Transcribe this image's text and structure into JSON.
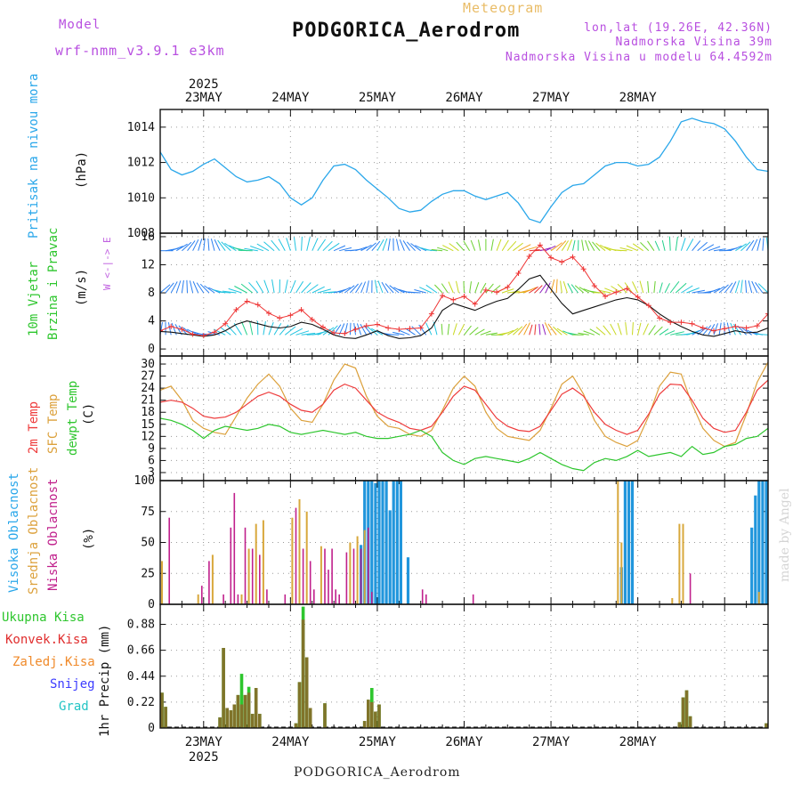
{
  "header": {
    "model_label": "Model",
    "model_name": "wrf-nmm_v3.9.1 e3km",
    "meteogram_label": "Meteogram",
    "station_title": "PODGORICA_Aerodrom",
    "coords": "lon,lat (19.26E, 42.36N)",
    "elevation": "Nadmorska Visina 39m",
    "model_elevation": "Nadmorska Visina u modelu 64.4592m"
  },
  "footer": {
    "station": "PODGORICA_Aerodrom"
  },
  "watermark": "made by Angel",
  "colors": {
    "pressure": "#2aa7ea",
    "wind_speed": "#111111",
    "gust": "#ee3333",
    "temp2m": "#ee3b3b",
    "sfc_temp": "#dca13c",
    "dewpoint": "#2ec62e",
    "high_cloud": "#2196dc",
    "mid_cloud": "#d8a83c",
    "low_cloud": "#c0208c",
    "total_precip": "#2ec62e",
    "conv_precip": "#e02d2d",
    "frozen_precip": "#f08a2a",
    "snow": "#3c3cff",
    "graupel": "#22c4c4"
  },
  "chart_data": [
    {
      "type": "line",
      "panel": "pressure",
      "ylabel_left": "Pritisak na nivou mora",
      "ylabel_unit": "(hPa)",
      "yticks": [
        1008,
        1010,
        1012,
        1014
      ],
      "ylim": [
        1008,
        1015
      ],
      "x_ticks": [
        "23MAY",
        "24MAY",
        "25MAY",
        "26MAY",
        "27MAY",
        "28MAY"
      ],
      "top_year": "2025",
      "start_hour": 12,
      "series": [
        {
          "name": "MSLP",
          "step_h": 3,
          "values": [
            1012.6,
            1011.6,
            1011.3,
            1011.5,
            1011.9,
            1012.2,
            1011.7,
            1011.2,
            1010.9,
            1011.0,
            1011.2,
            1010.8,
            1010.0,
            1009.6,
            1010.0,
            1011.0,
            1011.8,
            1011.9,
            1011.6,
            1011.0,
            1010.5,
            1010.0,
            1009.4,
            1009.2,
            1009.3,
            1009.8,
            1010.2,
            1010.4,
            1010.4,
            1010.1,
            1009.9,
            1010.1,
            1010.3,
            1009.7,
            1008.8,
            1008.6,
            1009.5,
            1010.3,
            1010.7,
            1010.8,
            1011.3,
            1011.8,
            1012.0,
            1012.0,
            1011.8,
            1011.9,
            1012.3,
            1013.2,
            1014.3,
            1014.5,
            1014.3,
            1014.2,
            1013.9,
            1013.2,
            1012.3,
            1011.6,
            1011.5,
            1012.2,
            1012.9,
            1013.0,
            1012.6,
            1012.4,
            1012.8,
            1012.8,
            1012.6,
            1012.5
          ]
        }
      ]
    },
    {
      "type": "line",
      "panel": "wind",
      "ylabel_left": [
        "10m Vjetar",
        "Brzina i Pravac"
      ],
      "ylabel_unit": "(m/s)",
      "compass": "W <-|-> E",
      "yticks": [
        0,
        4,
        8,
        12,
        16
      ],
      "ylim": [
        -1,
        16.5
      ],
      "series": [
        {
          "name": "speed",
          "step_h": 3,
          "values": [
            2.5,
            2.4,
            2.2,
            2.0,
            1.8,
            2.0,
            2.6,
            3.5,
            4.0,
            3.6,
            3.2,
            3.0,
            3.2,
            3.8,
            3.5,
            2.8,
            2.0,
            1.6,
            1.5,
            2.0,
            2.6,
            1.9,
            1.5,
            1.6,
            1.9,
            3.0,
            5.5,
            6.5,
            6.0,
            5.5,
            6.2,
            6.8,
            7.2,
            8.5,
            10.0,
            10.5,
            8.5,
            6.5,
            5.0,
            5.5,
            6.0,
            6.5,
            7.0,
            7.3,
            7.0,
            6.2,
            5.0,
            4.0,
            3.2,
            2.5,
            2.0,
            1.8,
            2.2,
            2.6,
            2.3,
            2.4,
            3.0,
            4.0,
            4.8,
            4.5,
            4.0,
            3.5,
            5.0,
            6.2,
            6.8,
            6.5
          ]
        },
        {
          "name": "gust",
          "step_h": 3,
          "values": [
            2.6,
            3.2,
            2.8,
            2.1,
            1.9,
            2.4,
            3.6,
            5.6,
            6.8,
            6.3,
            5.1,
            4.4,
            4.8,
            5.6,
            4.2,
            3.1,
            2.3,
            2.2,
            2.8,
            3.3,
            3.5,
            3.0,
            2.8,
            2.9,
            3.0,
            5.0,
            7.6,
            7.0,
            7.5,
            6.4,
            8.4,
            8.1,
            8.8,
            10.8,
            13.2,
            14.8,
            13.0,
            12.4,
            13.1,
            11.4,
            9.0,
            7.5,
            8.1,
            8.6,
            7.4,
            6.2,
            4.4,
            3.8,
            3.8,
            3.6,
            3.0,
            2.6,
            2.9,
            3.2,
            3.0,
            3.3,
            5.0,
            5.6,
            6.4,
            5.8,
            5.1,
            4.8,
            10.5,
            13.8,
            12.9,
            8.4
          ]
        },
        {
          "name": "barb_rows_kt",
          "values": [
            14,
            8,
            2
          ]
        }
      ]
    },
    {
      "type": "line",
      "panel": "temperature",
      "ylabel_left": [
        "2m Temp",
        "SFC Temp",
        "dewpt Temp"
      ],
      "ylabel_unit": "(C)",
      "yticks": [
        3,
        6,
        9,
        12,
        15,
        18,
        21,
        24,
        27,
        30
      ],
      "ylim": [
        1,
        32
      ],
      "series": [
        {
          "name": "2m Temp",
          "step_h": 3,
          "values": [
            20.5,
            21.0,
            20.5,
            19.0,
            17.0,
            16.5,
            16.8,
            18.0,
            20.0,
            22.0,
            23.0,
            22.0,
            20.0,
            18.5,
            18.0,
            20.0,
            23.5,
            25.0,
            24.0,
            21.0,
            18.0,
            16.5,
            15.5,
            14.0,
            13.5,
            14.5,
            18.0,
            22.0,
            24.5,
            23.5,
            20.0,
            16.5,
            14.5,
            13.5,
            13.2,
            14.5,
            18.5,
            22.5,
            24.0,
            22.0,
            18.0,
            15.0,
            13.5,
            12.5,
            13.5,
            17.5,
            22.5,
            25.0,
            24.8,
            21.0,
            16.5,
            14.0,
            13.0,
            13.5,
            18.0,
            23.5,
            26.0,
            25.0,
            21.0,
            17.5,
            16.0,
            16.5,
            20.0,
            24.0,
            25.8,
            25.5
          ]
        },
        {
          "name": "SFC Temp",
          "step_h": 3,
          "values": [
            23.5,
            24.5,
            21.0,
            16.0,
            14.0,
            13.0,
            12.5,
            17.0,
            21.5,
            25.0,
            27.5,
            24.5,
            19.0,
            16.0,
            15.5,
            20.0,
            26.0,
            30.0,
            29.0,
            22.0,
            17.0,
            14.5,
            14.0,
            12.5,
            12.0,
            13.5,
            18.5,
            24.0,
            27.0,
            24.5,
            18.0,
            14.0,
            12.0,
            11.5,
            11.0,
            13.5,
            19.0,
            25.0,
            27.0,
            22.5,
            16.0,
            12.0,
            10.5,
            9.5,
            11.0,
            17.0,
            24.5,
            28.0,
            27.5,
            20.0,
            14.0,
            11.0,
            9.5,
            10.5,
            17.5,
            25.5,
            30.5,
            28.0,
            21.5,
            16.5,
            15.0,
            16.0,
            21.0,
            26.5,
            28.5,
            27.5
          ]
        },
        {
          "name": "dewpt Temp",
          "step_h": 3,
          "values": [
            16.5,
            16.0,
            15.0,
            13.5,
            11.5,
            13.5,
            14.5,
            14.0,
            13.5,
            14.0,
            15.0,
            14.5,
            13.0,
            12.5,
            13.0,
            13.5,
            13.0,
            12.5,
            13.0,
            12.0,
            11.5,
            11.5,
            12.0,
            12.5,
            13.5,
            12.0,
            8.0,
            6.0,
            5.0,
            6.5,
            7.0,
            6.5,
            6.0,
            5.5,
            6.5,
            8.0,
            6.5,
            5.0,
            4.0,
            3.5,
            5.5,
            6.5,
            6.0,
            7.0,
            8.5,
            7.0,
            7.5,
            8.0,
            7.0,
            9.5,
            7.5,
            8.0,
            9.5,
            10.0,
            11.5,
            12.0,
            14.0,
            12.0,
            11.0,
            10.5,
            9.5,
            9.0,
            10.5,
            11.5,
            12.0,
            11.0
          ]
        }
      ]
    },
    {
      "type": "bar",
      "panel": "cloud",
      "ylabel_left": [
        "Visoka Oblacnost",
        "Srednja Oblacnost",
        "Niska Oblacnost"
      ],
      "ylabel_unit": "(%)",
      "yticks": [
        0,
        25,
        50,
        75,
        100
      ],
      "ylim": [
        0,
        100
      ],
      "step_h": 1,
      "series": [
        {
          "name": "Visoka Oblacnost",
          "bars": [
            [
              55,
              48
            ],
            [
              56,
              100
            ],
            [
              57,
              100
            ],
            [
              58,
              100
            ],
            [
              59,
              98
            ],
            [
              60,
              100
            ],
            [
              61,
              100
            ],
            [
              62,
              100
            ],
            [
              63,
              76
            ],
            [
              64,
              100
            ],
            [
              65,
              100
            ],
            [
              66,
              100
            ],
            [
              68,
              38
            ],
            [
              127,
              30
            ],
            [
              128,
              100
            ],
            [
              129,
              100
            ],
            [
              130,
              100
            ],
            [
              163,
              62
            ],
            [
              164,
              88
            ],
            [
              165,
              100
            ],
            [
              166,
              100
            ],
            [
              167,
              100
            ]
          ]
        },
        {
          "name": "Srednja Oblacnost",
          "bars": [
            [
              0,
              35
            ],
            [
              10,
              8
            ],
            [
              14,
              40
            ],
            [
              22,
              8
            ],
            [
              24,
              45
            ],
            [
              26,
              65
            ],
            [
              28,
              68
            ],
            [
              36,
              70
            ],
            [
              38,
              85
            ],
            [
              40,
              75
            ],
            [
              44,
              47
            ],
            [
              52,
              50
            ],
            [
              54,
              55
            ],
            [
              56,
              60
            ],
            [
              126,
              100
            ],
            [
              127,
              50
            ],
            [
              141,
              5
            ],
            [
              143,
              65
            ],
            [
              144,
              65
            ],
            [
              165,
              10
            ]
          ]
        },
        {
          "name": "Niska Oblacnost",
          "bars": [
            [
              2,
              70
            ],
            [
              11,
              15
            ],
            [
              13,
              35
            ],
            [
              17,
              8
            ],
            [
              19,
              62
            ],
            [
              20,
              90
            ],
            [
              21,
              8
            ],
            [
              23,
              62
            ],
            [
              25,
              45
            ],
            [
              27,
              40
            ],
            [
              29,
              12
            ],
            [
              34,
              8
            ],
            [
              37,
              78
            ],
            [
              39,
              45
            ],
            [
              41,
              35
            ],
            [
              42,
              12
            ],
            [
              45,
              45
            ],
            [
              46,
              28
            ],
            [
              47,
              45
            ],
            [
              48,
              12
            ],
            [
              49,
              8
            ],
            [
              51,
              42
            ],
            [
              53,
              45
            ],
            [
              55,
              45
            ],
            [
              57,
              62
            ],
            [
              58,
              10
            ],
            [
              72,
              12
            ],
            [
              73,
              8
            ],
            [
              86,
              8
            ],
            [
              146,
              25
            ]
          ]
        }
      ]
    },
    {
      "type": "bar",
      "panel": "precip",
      "ylabel_left": [
        "Ukupna Kisa",
        "Konvek.Kisa",
        "Zaledj.Kisa",
        "Snijeg",
        "Grad"
      ],
      "ylabel_unit": "1hr Precip (mm)",
      "yticks": [
        0,
        0.22,
        0.44,
        0.66,
        0.88
      ],
      "ylim": [
        0,
        1.05
      ],
      "bottom_year": "2025",
      "step_h": 1,
      "series": [
        {
          "name": "total",
          "bars": [
            [
              0,
              0.3
            ],
            [
              1,
              0.18
            ],
            [
              16,
              0.09
            ],
            [
              17,
              0.68
            ],
            [
              18,
              0.17
            ],
            [
              19,
              0.15
            ],
            [
              20,
              0.2
            ],
            [
              21,
              0.28
            ],
            [
              22,
              0.46
            ],
            [
              23,
              0.28
            ],
            [
              24,
              0.35
            ],
            [
              25,
              0.12
            ],
            [
              26,
              0.34
            ],
            [
              27,
              0.12
            ],
            [
              37,
              0.04
            ],
            [
              38,
              0.39
            ],
            [
              39,
              1.03
            ],
            [
              40,
              0.6
            ],
            [
              41,
              0.17
            ],
            [
              45,
              0.21
            ],
            [
              56,
              0.06
            ],
            [
              57,
              0.24
            ],
            [
              58,
              0.34
            ],
            [
              59,
              0.14
            ],
            [
              60,
              0.2
            ],
            [
              143,
              0.05
            ],
            [
              144,
              0.26
            ],
            [
              145,
              0.32
            ],
            [
              146,
              0.1
            ],
            [
              167,
              0.04
            ]
          ]
        },
        {
          "name": "convective",
          "bars": [
            [
              0,
              0.3
            ],
            [
              1,
              0.18
            ],
            [
              16,
              0.09
            ],
            [
              17,
              0.68
            ],
            [
              18,
              0.17
            ],
            [
              19,
              0.15
            ],
            [
              20,
              0.2
            ],
            [
              21,
              0.28
            ],
            [
              22,
              0.2
            ],
            [
              23,
              0.28
            ],
            [
              24,
              0.3
            ],
            [
              25,
              0.12
            ],
            [
              26,
              0.34
            ],
            [
              27,
              0.12
            ],
            [
              37,
              0.04
            ],
            [
              38,
              0.39
            ],
            [
              39,
              0.92
            ],
            [
              40,
              0.6
            ],
            [
              41,
              0.17
            ],
            [
              45,
              0.21
            ],
            [
              56,
              0.06
            ],
            [
              57,
              0.24
            ],
            [
              58,
              0.22
            ],
            [
              59,
              0.14
            ],
            [
              60,
              0.2
            ],
            [
              143,
              0.05
            ],
            [
              144,
              0.26
            ],
            [
              145,
              0.32
            ],
            [
              146,
              0.1
            ],
            [
              167,
              0.04
            ]
          ]
        }
      ]
    }
  ]
}
